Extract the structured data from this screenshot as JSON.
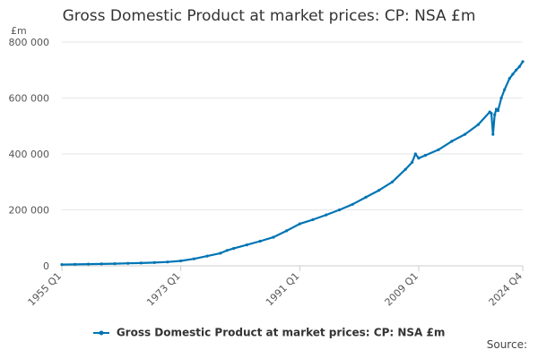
{
  "chart_data": {
    "type": "line",
    "title": "Gross Domestic Product at market prices: CP: NSA £m",
    "ylabel": "£m",
    "xlabel": "",
    "ylim": [
      0,
      800000
    ],
    "y_ticks": [
      0,
      200000,
      400000,
      600000,
      800000
    ],
    "y_tick_labels": [
      "0",
      "200 000",
      "400 000",
      "600 000",
      "800 000"
    ],
    "x_range": [
      "1955 Q1",
      "2024 Q4"
    ],
    "x_tick_labels": [
      "1955 Q1",
      "1973 Q1",
      "1991 Q1",
      "2009 Q1",
      "2024 Q4"
    ],
    "legend_position": "bottom",
    "color": "#0075b4",
    "series": [
      {
        "name": "Gross Domestic Product at market prices: CP: NSA £m",
        "points": [
          [
            "1955 Q1",
            4500
          ],
          [
            "1957 Q1",
            5200
          ],
          [
            "1959 Q1",
            6000
          ],
          [
            "1961 Q1",
            6800
          ],
          [
            "1963 Q1",
            7600
          ],
          [
            "1965 Q1",
            8900
          ],
          [
            "1967 Q1",
            9900
          ],
          [
            "1969 Q1",
            11500
          ],
          [
            "1971 Q1",
            13800
          ],
          [
            "1973 Q1",
            17500
          ],
          [
            "1975 Q1",
            25000
          ],
          [
            "1977 Q1",
            35000
          ],
          [
            "1979 Q1",
            45000
          ],
          [
            "1980 Q1",
            55000
          ],
          [
            "1981 Q1",
            62000
          ],
          [
            "1983 Q1",
            75000
          ],
          [
            "1985 Q1",
            88000
          ],
          [
            "1987 Q1",
            102000
          ],
          [
            "1989 Q1",
            125000
          ],
          [
            "1991 Q1",
            150000
          ],
          [
            "1993 Q1",
            165000
          ],
          [
            "1995 Q1",
            182000
          ],
          [
            "1997 Q1",
            200000
          ],
          [
            "1999 Q1",
            220000
          ],
          [
            "2001 Q1",
            245000
          ],
          [
            "2003 Q1",
            270000
          ],
          [
            "2005 Q1",
            300000
          ],
          [
            "2007 Q1",
            345000
          ],
          [
            "2008 Q1",
            370000
          ],
          [
            "2008 Q3",
            400000
          ],
          [
            "2009 Q1",
            385000
          ],
          [
            "2010 Q1",
            395000
          ],
          [
            "2012 Q1",
            415000
          ],
          [
            "2014 Q1",
            445000
          ],
          [
            "2016 Q1",
            470000
          ],
          [
            "2018 Q1",
            505000
          ],
          [
            "2019 Q4",
            550000
          ],
          [
            "2020 Q1",
            545000
          ],
          [
            "2020 Q2",
            470000
          ],
          [
            "2020 Q3",
            540000
          ],
          [
            "2020 Q4",
            560000
          ],
          [
            "2021 Q1",
            555000
          ],
          [
            "2021 Q3",
            600000
          ],
          [
            "2022 Q1",
            630000
          ],
          [
            "2022 Q4",
            670000
          ],
          [
            "2023 Q2",
            685000
          ],
          [
            "2023 Q4",
            700000
          ],
          [
            "2024 Q2",
            712000
          ],
          [
            "2024 Q4",
            730000
          ]
        ]
      }
    ]
  },
  "source_label": "Source:"
}
